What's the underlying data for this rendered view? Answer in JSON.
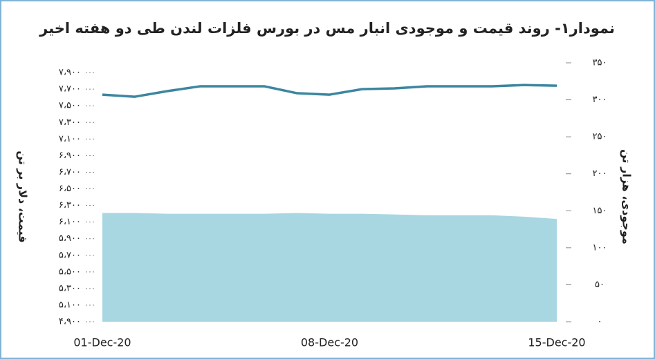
{
  "chart_data": {
    "type": "line",
    "title": "نمودار۱- روند قیمت و موجودی انبار مس در بورس فلزات لندن طی دو هفته اخیر",
    "y_label": "قیمت، دلار بر تن",
    "y2_label": "موجودی، هزار تن",
    "categories": [
      "01-Dec-20",
      null,
      null,
      null,
      null,
      null,
      null,
      "08-Dec-20",
      null,
      null,
      null,
      null,
      null,
      null,
      "15-Dec-20"
    ],
    "series": [
      {
        "type": "area",
        "axis": "y2",
        "color": "#a8d7e2",
        "values": [
          147,
          147,
          146,
          146,
          146,
          146,
          147,
          146,
          146,
          145,
          144,
          144,
          144,
          142,
          139
        ]
      },
      {
        "type": "line",
        "color": "#3c86a0",
        "values": [
          7634,
          7609,
          7676,
          7734,
          7734,
          7734,
          7651,
          7634,
          7700,
          7709,
          7734,
          7734,
          7734,
          7750,
          7742
        ]
      }
    ],
    "ylim": [
      4900,
      8017
    ],
    "yticks": [
      {
        "value": 4900,
        "label": "۴،۹۰۰"
      },
      {
        "value": 5100,
        "label": "۵،۱۰۰"
      },
      {
        "value": 5300,
        "label": "۵،۳۰۰"
      },
      {
        "value": 5500,
        "label": "۵،۵۰۰"
      },
      {
        "value": 5700,
        "label": "۵،۷۰۰"
      },
      {
        "value": 5900,
        "label": "۵،۹۰۰"
      },
      {
        "value": 6100,
        "label": "۶،۱۰۰"
      },
      {
        "value": 6300,
        "label": "۶،۳۰۰"
      },
      {
        "value": 6500,
        "label": "۶،۵۰۰"
      },
      {
        "value": 6700,
        "label": "۶،۷۰۰"
      },
      {
        "value": 6900,
        "label": "۶،۹۰۰"
      },
      {
        "value": 7100,
        "label": "۷،۱۰۰"
      },
      {
        "value": 7300,
        "label": "۷،۳۰۰"
      },
      {
        "value": 7500,
        "label": "۷،۵۰۰"
      },
      {
        "value": 7700,
        "label": "۷،۷۰۰"
      },
      {
        "value": 7900,
        "label": "۷،۹۰۰"
      }
    ],
    "y2lim": [
      0,
      350
    ],
    "y2ticks": [
      {
        "value": 0,
        "label": "۰"
      },
      {
        "value": 50,
        "label": "۵۰"
      },
      {
        "value": 100,
        "label": "۱۰۰"
      },
      {
        "value": 150,
        "label": "۱۵۰"
      },
      {
        "value": 200,
        "label": "۲۰۰"
      },
      {
        "value": 250,
        "label": "۲۵۰"
      },
      {
        "value": 300,
        "label": "۳۰۰"
      },
      {
        "value": 350,
        "label": "۳۵۰"
      }
    ],
    "grid": false
  }
}
